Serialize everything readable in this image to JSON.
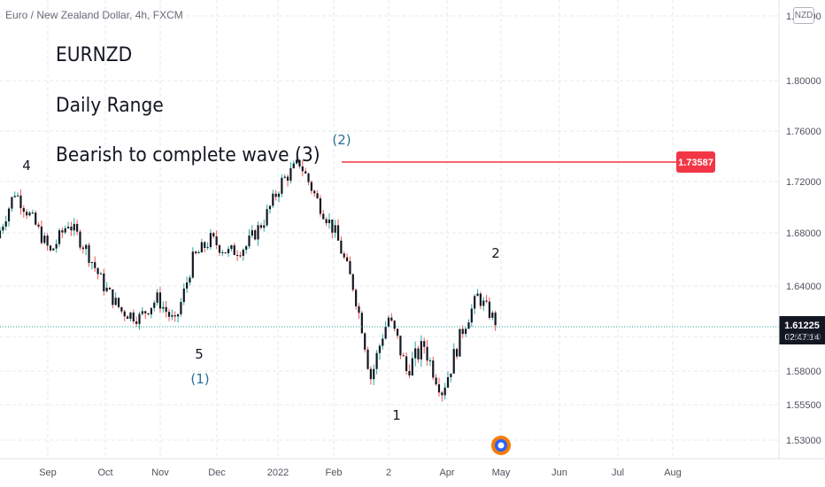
{
  "header": {
    "symbol_title": "Euro / New Zealand Dollar, 4h, FXCM",
    "currency_badge": "NZD"
  },
  "annotations": {
    "line1": "EURNZD",
    "line2": "Daily Range",
    "line3": "Bearish to complete wave (3)"
  },
  "wave_labels": [
    {
      "text": "4",
      "color": "#131722"
    },
    {
      "text": "5",
      "color": "#131722"
    },
    {
      "text": "(1)",
      "color": "#2a6f97"
    },
    {
      "text": "(2)",
      "color": "#2a6f97"
    },
    {
      "text": "1",
      "color": "#131722"
    },
    {
      "text": "2",
      "color": "#131722"
    }
  ],
  "horizontal_line": {
    "price": "1.73587",
    "color": "#f23645"
  },
  "current_price": {
    "price": "1.61225",
    "countdown": "02:47:14",
    "color": "#131722"
  },
  "colors": {
    "up": "#26a69a",
    "down": "#ef5350",
    "candle_body": "#131722",
    "grid": "#e6e8ec"
  },
  "chart_data": {
    "type": "candlestick",
    "price_axis_ticks": [
      "1.84000",
      "1.80000",
      "1.76000",
      "1.72000",
      "1.68000",
      "1.64000",
      "1.60000",
      "1.58000",
      "1.55500",
      "1.53000"
    ],
    "time_axis_ticks": [
      "Sep",
      "Oct",
      "Nov",
      "Dec",
      "2022",
      "Feb",
      "2",
      "Apr",
      "May",
      "Jun",
      "Jul",
      "Aug"
    ],
    "ylim": [
      1.525,
      1.85
    ],
    "close_series_approx": [
      {
        "x": "Aug start",
        "y": 1.676
      },
      {
        "x": "late Aug",
        "y": 1.712
      },
      {
        "x": "early Sep",
        "y": 1.69
      },
      {
        "x": "mid Sep",
        "y": 1.665
      },
      {
        "x": "late Sep",
        "y": 1.688
      },
      {
        "x": "early Oct",
        "y": 1.668
      },
      {
        "x": "mid Oct",
        "y": 1.64
      },
      {
        "x": "late Oct",
        "y": 1.62
      },
      {
        "x": "Nov",
        "y": 1.615
      },
      {
        "x": "mid Nov",
        "y": 1.63
      },
      {
        "x": "late Nov",
        "y": 1.61
      },
      {
        "x": "early Dec",
        "y": 1.66
      },
      {
        "x": "mid Dec",
        "y": 1.675
      },
      {
        "x": "late Dec",
        "y": 1.665
      },
      {
        "x": "early Jan",
        "y": 1.67
      },
      {
        "x": "mid Jan",
        "y": 1.69
      },
      {
        "x": "late Jan",
        "y": 1.72
      },
      {
        "x": "early Feb",
        "y": 1.735
      },
      {
        "x": "mid Feb",
        "y": 1.705
      },
      {
        "x": "late Feb",
        "y": 1.68
      },
      {
        "x": "early Mar",
        "y": 1.64
      },
      {
        "x": "Mar",
        "y": 1.575
      },
      {
        "x": "mid Mar",
        "y": 1.615
      },
      {
        "x": "late Mar",
        "y": 1.58
      },
      {
        "x": "early Apr",
        "y": 1.595
      },
      {
        "x": "mid Apr",
        "y": 1.565
      },
      {
        "x": "late Apr",
        "y": 1.6
      },
      {
        "x": "end Apr",
        "y": 1.632
      },
      {
        "x": "May start",
        "y": 1.612
      }
    ]
  }
}
